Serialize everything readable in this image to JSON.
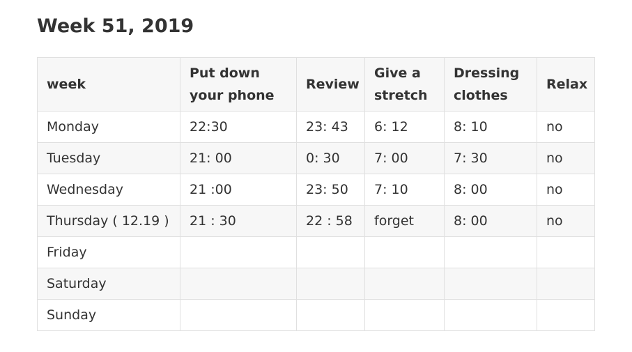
{
  "page": {
    "title": "Week 51, 2019"
  },
  "table": {
    "headers": [
      "week",
      "Put down your phone",
      "Review",
      "Give a stretch",
      "Dressing clothes",
      "Relax"
    ],
    "rows": [
      [
        "Monday",
        "22:30",
        "23: 43",
        "6: 12",
        "8: 10",
        "no"
      ],
      [
        "Tuesday",
        "21: 00",
        "0: 30",
        "7: 00",
        "7: 30",
        "no"
      ],
      [
        "Wednesday",
        "21 :00",
        "23: 50",
        "7: 10",
        "8: 00",
        "no"
      ],
      [
        "Thursday ( 12.19 )",
        "21 :  30",
        "22 :  58",
        "forget",
        "8: 00",
        "no"
      ],
      [
        "Friday",
        "",
        "",
        "",
        "",
        ""
      ],
      [
        "Saturday",
        "",
        "",
        "",
        "",
        ""
      ],
      [
        "Sunday",
        "",
        "",
        "",
        "",
        ""
      ]
    ]
  }
}
